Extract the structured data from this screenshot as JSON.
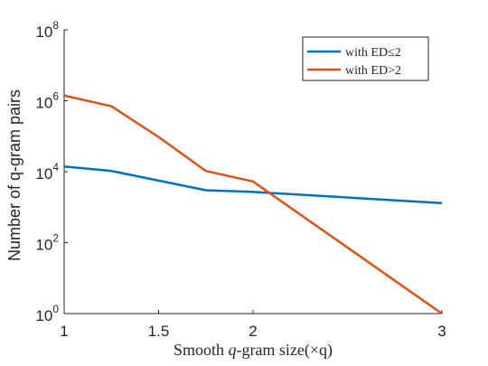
{
  "chart_data": {
    "type": "line",
    "xlabel": {
      "prefix": "Smooth ",
      "italic": "q",
      "suffix": "-gram size(×q)"
    },
    "ylabel": "Number of q-gram pairs",
    "xlim": [
      1,
      3
    ],
    "ylim": [
      1,
      100000000
    ],
    "yscale": "log",
    "grid": false,
    "legend_position": "top-right",
    "x_ticks": [
      {
        "value": 1,
        "label": "1"
      },
      {
        "value": 1.5,
        "label": "1.5"
      },
      {
        "value": 2,
        "label": "2"
      },
      {
        "value": 3,
        "label": "3"
      }
    ],
    "y_ticks": [
      {
        "value": 1,
        "base": "10",
        "exp": "0"
      },
      {
        "value": 100,
        "base": "10",
        "exp": "2"
      },
      {
        "value": 10000,
        "base": "10",
        "exp": "4"
      },
      {
        "value": 1000000,
        "base": "10",
        "exp": "6"
      },
      {
        "value": 100000000,
        "base": "10",
        "exp": "8"
      }
    ],
    "series": [
      {
        "name": "with ED≤2",
        "color": "#0072bd",
        "points": [
          {
            "x": 1,
            "y": 14000
          },
          {
            "x": 1.25,
            "y": 10500
          },
          {
            "x": 1.75,
            "y": 3000
          },
          {
            "x": 2,
            "y": 2700
          },
          {
            "x": 3,
            "y": 1300
          }
        ]
      },
      {
        "name": "with ED>2",
        "color": "#d95319",
        "points": [
          {
            "x": 1,
            "y": 1400000
          },
          {
            "x": 1.25,
            "y": 700000
          },
          {
            "x": 1.5,
            "y": 95000
          },
          {
            "x": 1.75,
            "y": 10500
          },
          {
            "x": 2,
            "y": 5300
          },
          {
            "x": 3,
            "y": 1
          }
        ]
      }
    ]
  }
}
